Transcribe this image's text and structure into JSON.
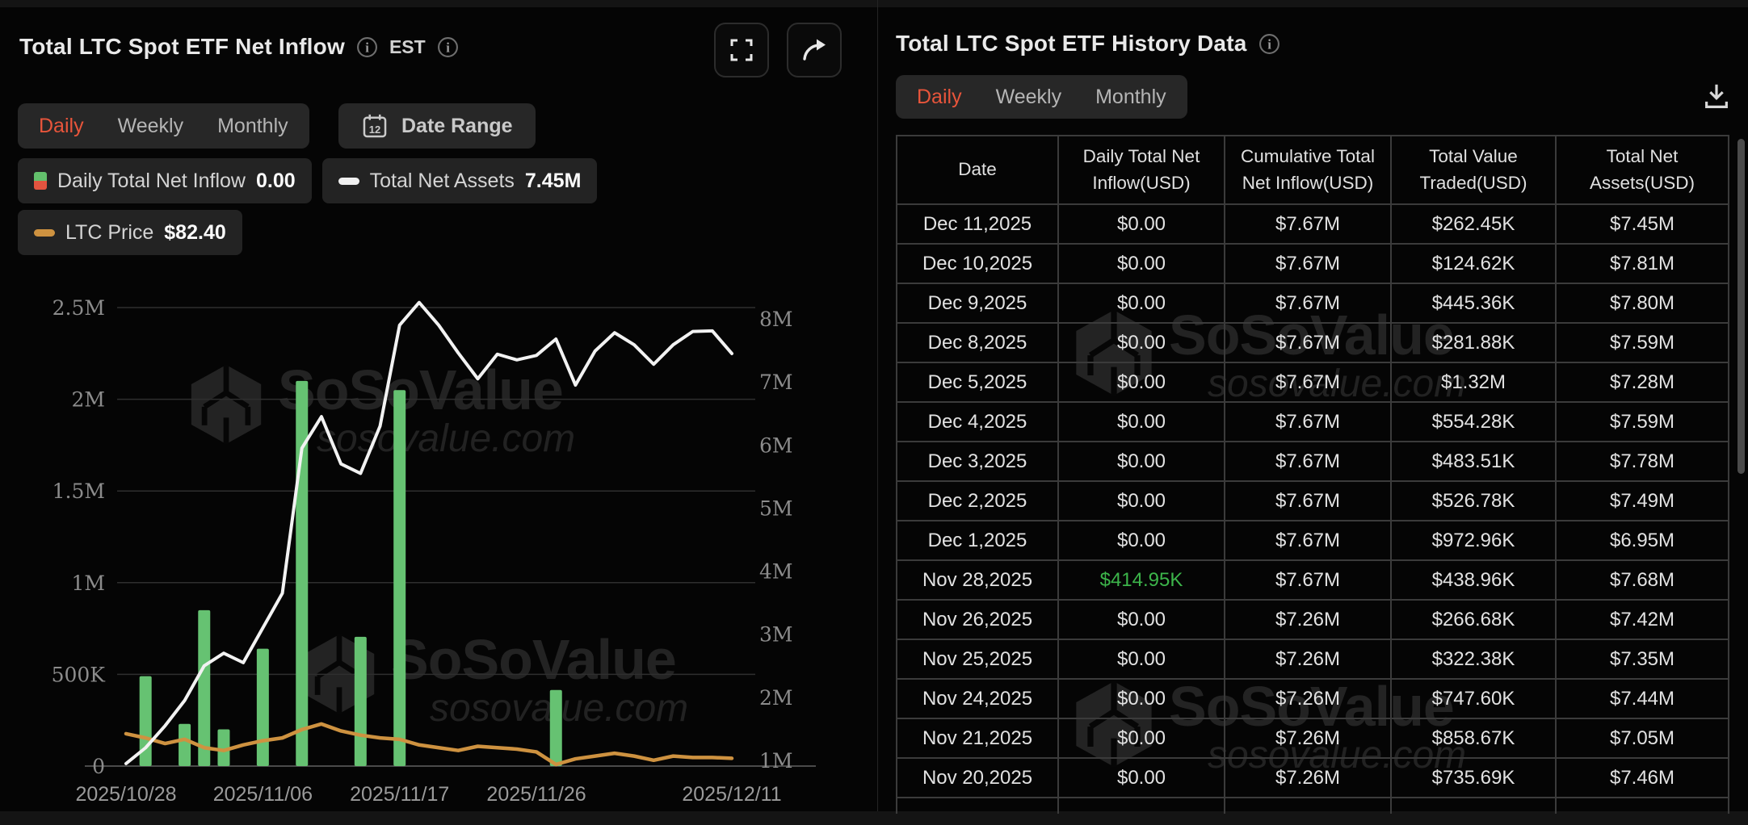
{
  "page": {
    "watermark_brand": "SoSoValue",
    "watermark_domain": "sosovalue.com"
  },
  "colors": {
    "accent_orange": "#E8553B",
    "bar_green": "#66C272",
    "assets_line_white": "#F2F2F2",
    "price_line_orange": "#CE9240",
    "table_positive_green": "#3CB44A",
    "grid_line": "#2F2F2F",
    "legend_red": "#E2543F",
    "legend_green": "#63C06C"
  },
  "left_panel": {
    "title": "Total LTC Spot ETF Net Inflow",
    "timezone": "EST",
    "tabs": [
      "Daily",
      "Weekly",
      "Monthly"
    ],
    "active_tab": "Daily",
    "date_range_label": "Date Range",
    "legend": [
      {
        "label": "Daily Total Net Inflow",
        "value": "0.00",
        "swatch": "green-red-square"
      },
      {
        "label": "Total Net Assets",
        "value": "7.45M",
        "swatch": "white-pill"
      },
      {
        "label": "LTC Price",
        "value": "$82.40",
        "swatch": "orange-pill"
      }
    ]
  },
  "chart_data": {
    "type": "combo",
    "x": [
      "2025/10/28",
      "2025/10/29",
      "2025/10/30",
      "2025/10/31",
      "2025/11/03",
      "2025/11/04",
      "2025/11/05",
      "2025/11/06",
      "2025/11/07",
      "2025/11/10",
      "2025/11/11",
      "2025/11/12",
      "2025/11/13",
      "2025/11/14",
      "2025/11/17",
      "2025/11/18",
      "2025/11/19",
      "2025/11/20",
      "2025/11/21",
      "2025/11/24",
      "2025/11/25",
      "2025/11/26",
      "2025/11/28",
      "2025/12/01",
      "2025/12/02",
      "2025/12/03",
      "2025/12/04",
      "2025/12/05",
      "2025/12/08",
      "2025/12/09",
      "2025/12/10",
      "2025/12/11"
    ],
    "x_ticks": [
      "2025/10/28",
      "2025/11/06",
      "2025/11/17",
      "2025/11/26",
      "2025/12/11"
    ],
    "left_axis": {
      "ticks": [
        "0",
        "500K",
        "1M",
        "1.5M",
        "2M",
        "2.5M"
      ],
      "values": [
        0,
        500000,
        1000000,
        1500000,
        2000000,
        2500000
      ]
    },
    "right_axis": {
      "ticks": [
        "1M",
        "2M",
        "3M",
        "4M",
        "5M",
        "6M",
        "7M",
        "8M"
      ],
      "values": [
        1000000,
        2000000,
        3000000,
        4000000,
        5000000,
        6000000,
        7000000,
        8000000
      ]
    },
    "series": [
      {
        "name": "Daily Total Net Inflow",
        "type": "bar",
        "axis": "left",
        "unit": "USD",
        "values": [
          0,
          490000,
          0,
          230000,
          850000,
          200000,
          0,
          640000,
          0,
          2100000,
          0,
          0,
          705000,
          0,
          2050000,
          0,
          0,
          0,
          0,
          0,
          0,
          0,
          414950,
          0,
          0,
          0,
          0,
          0,
          0,
          0,
          0,
          0
        ]
      },
      {
        "name": "Total Net Assets",
        "type": "line",
        "axis": "right",
        "unit": "USD",
        "values": [
          950000,
          1200000,
          1550000,
          1950000,
          2500000,
          2700000,
          2550000,
          3100000,
          3650000,
          5950000,
          6450000,
          5700000,
          5550000,
          6300000,
          7900000,
          8260000,
          7900000,
          7460000,
          7050000,
          7440000,
          7350000,
          7420000,
          7680000,
          6950000,
          7490000,
          7780000,
          7590000,
          7280000,
          7590000,
          7800000,
          7810000,
          7450000
        ]
      },
      {
        "name": "LTC Price",
        "type": "line",
        "axis": "hidden",
        "unit": "USD",
        "values": [
          100,
          97,
          93,
          96,
          90,
          88,
          92,
          95,
          97,
          103,
          107,
          102,
          99,
          97,
          96,
          92,
          90,
          88,
          91,
          90,
          89,
          87,
          78,
          82,
          84,
          86,
          84,
          81,
          84,
          83,
          83,
          82.4
        ]
      }
    ]
  },
  "right_panel": {
    "title": "Total LTC Spot ETF History Data",
    "tabs": [
      "Daily",
      "Weekly",
      "Monthly"
    ],
    "active_tab": "Daily",
    "table": {
      "headers": [
        "Date",
        "Daily Total Net\nInflow(USD)",
        "Cumulative Total\nNet Inflow(USD)",
        "Total Value\nTraded(USD)",
        "Total Net\nAssets(USD)"
      ],
      "rows": [
        [
          "Dec 11,2025",
          "$0.00",
          "$7.67M",
          "$262.45K",
          "$7.45M"
        ],
        [
          "Dec 10,2025",
          "$0.00",
          "$7.67M",
          "$124.62K",
          "$7.81M"
        ],
        [
          "Dec 9,2025",
          "$0.00",
          "$7.67M",
          "$445.36K",
          "$7.80M"
        ],
        [
          "Dec 8,2025",
          "$0.00",
          "$7.67M",
          "$281.88K",
          "$7.59M"
        ],
        [
          "Dec 5,2025",
          "$0.00",
          "$7.67M",
          "$1.32M",
          "$7.28M"
        ],
        [
          "Dec 4,2025",
          "$0.00",
          "$7.67M",
          "$554.28K",
          "$7.59M"
        ],
        [
          "Dec 3,2025",
          "$0.00",
          "$7.67M",
          "$483.51K",
          "$7.78M"
        ],
        [
          "Dec 2,2025",
          "$0.00",
          "$7.67M",
          "$526.78K",
          "$7.49M"
        ],
        [
          "Dec 1,2025",
          "$0.00",
          "$7.67M",
          "$972.96K",
          "$6.95M"
        ],
        [
          "Nov 28,2025",
          "$414.95K",
          "$7.67M",
          "$438.96K",
          "$7.68M"
        ],
        [
          "Nov 26,2025",
          "$0.00",
          "$7.26M",
          "$266.68K",
          "$7.42M"
        ],
        [
          "Nov 25,2025",
          "$0.00",
          "$7.26M",
          "$322.38K",
          "$7.35M"
        ],
        [
          "Nov 24,2025",
          "$0.00",
          "$7.26M",
          "$747.60K",
          "$7.44M"
        ],
        [
          "Nov 21,2025",
          "$0.00",
          "$7.26M",
          "$858.67K",
          "$7.05M"
        ],
        [
          "Nov 20,2025",
          "$0.00",
          "$7.26M",
          "$735.69K",
          "$7.46M"
        ]
      ],
      "highlight_cells": [
        {
          "row": 9,
          "col": 1,
          "style": "positive"
        }
      ]
    }
  }
}
